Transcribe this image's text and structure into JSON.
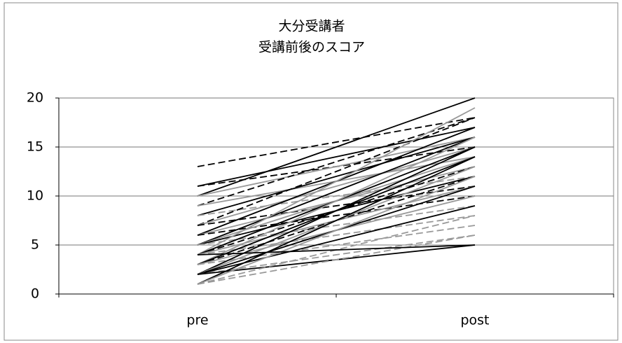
{
  "chart_data": {
    "type": "line",
    "title": [
      "大分受講者",
      "受講前後のスコア"
    ],
    "categories": [
      "pre",
      "post"
    ],
    "ylim": [
      0,
      20
    ],
    "yticks": [
      0,
      5,
      10,
      15,
      20
    ],
    "grid": true,
    "series": [
      {
        "color": "#000000",
        "dashed": true,
        "values": [
          13,
          18
        ]
      },
      {
        "color": "#000000",
        "dashed": true,
        "values": [
          11,
          15
        ]
      },
      {
        "color": "#000000",
        "dashed": false,
        "values": [
          11,
          17
        ]
      },
      {
        "color": "#000000",
        "dashed": false,
        "values": [
          10,
          20
        ]
      },
      {
        "color": "#999999",
        "dashed": false,
        "values": [
          10,
          16
        ]
      },
      {
        "color": "#000000",
        "dashed": true,
        "values": [
          9,
          18
        ]
      },
      {
        "color": "#999999",
        "dashed": false,
        "values": [
          9,
          14
        ]
      },
      {
        "color": "#000000",
        "dashed": false,
        "values": [
          8,
          16
        ]
      },
      {
        "color": "#999999",
        "dashed": true,
        "values": [
          8,
          12
        ]
      },
      {
        "color": "#000000",
        "dashed": true,
        "values": [
          7,
          18
        ]
      },
      {
        "color": "#999999",
        "dashed": false,
        "values": [
          7,
          15
        ]
      },
      {
        "color": "#000000",
        "dashed": true,
        "values": [
          7,
          11
        ]
      },
      {
        "color": "#000000",
        "dashed": false,
        "values": [
          6,
          17
        ]
      },
      {
        "color": "#999999",
        "dashed": false,
        "values": [
          6,
          13
        ]
      },
      {
        "color": "#000000",
        "dashed": true,
        "values": [
          6,
          10
        ]
      },
      {
        "color": "#000000",
        "dashed": false,
        "values": [
          5,
          16
        ]
      },
      {
        "color": "#999999",
        "dashed": false,
        "values": [
          5,
          14
        ]
      },
      {
        "color": "#000000",
        "dashed": false,
        "values": [
          5,
          12
        ]
      },
      {
        "color": "#999999",
        "dashed": true,
        "values": [
          5,
          9
        ]
      },
      {
        "color": "#999999",
        "dashed": false,
        "values": [
          4,
          19
        ]
      },
      {
        "color": "#000000",
        "dashed": false,
        "values": [
          4,
          15
        ]
      },
      {
        "color": "#000000",
        "dashed": true,
        "values": [
          4,
          13
        ]
      },
      {
        "color": "#999999",
        "dashed": false,
        "values": [
          4,
          11
        ]
      },
      {
        "color": "#999999",
        "dashed": true,
        "values": [
          4,
          8
        ]
      },
      {
        "color": "#999999",
        "dashed": false,
        "values": [
          3,
          16
        ]
      },
      {
        "color": "#000000",
        "dashed": false,
        "values": [
          3,
          14
        ]
      },
      {
        "color": "#000000",
        "dashed": true,
        "values": [
          3,
          12
        ]
      },
      {
        "color": "#999999",
        "dashed": false,
        "values": [
          3,
          10
        ]
      },
      {
        "color": "#999999",
        "dashed": true,
        "values": [
          3,
          7
        ]
      },
      {
        "color": "#000000",
        "dashed": false,
        "values": [
          2,
          15
        ]
      },
      {
        "color": "#999999",
        "dashed": false,
        "values": [
          2,
          13
        ]
      },
      {
        "color": "#000000",
        "dashed": false,
        "values": [
          2,
          11
        ]
      },
      {
        "color": "#000000",
        "dashed": false,
        "values": [
          2,
          9
        ]
      },
      {
        "color": "#999999",
        "dashed": true,
        "values": [
          2,
          6
        ]
      },
      {
        "color": "#000000",
        "dashed": false,
        "values": [
          2,
          5
        ]
      },
      {
        "color": "#000000",
        "dashed": false,
        "values": [
          1,
          14
        ]
      },
      {
        "color": "#999999",
        "dashed": false,
        "values": [
          1,
          12
        ]
      },
      {
        "color": "#999999",
        "dashed": true,
        "values": [
          1,
          8
        ]
      },
      {
        "color": "#999999",
        "dashed": true,
        "values": [
          1,
          6
        ]
      },
      {
        "color": "#000000",
        "dashed": false,
        "values": [
          4,
          5
        ]
      }
    ]
  }
}
